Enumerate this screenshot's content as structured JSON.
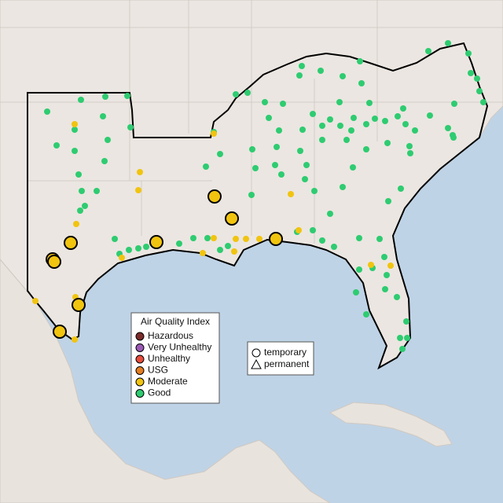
{
  "legend": {
    "title": "Air Quality Index",
    "items": [
      {
        "label": "Hazardous",
        "color": "#7b2b2b"
      },
      {
        "label": "Very Unhealthy",
        "color": "#9b59b6"
      },
      {
        "label": "Unhealthy",
        "color": "#e74c3c"
      },
      {
        "label": "USG",
        "color": "#e67e22"
      },
      {
        "label": "Moderate",
        "color": "#f1c40f"
      },
      {
        "label": "Good",
        "color": "#2ecc71"
      }
    ]
  },
  "type_legend": {
    "items": [
      {
        "label": "temporary"
      },
      {
        "label": "permanent"
      }
    ]
  }
}
